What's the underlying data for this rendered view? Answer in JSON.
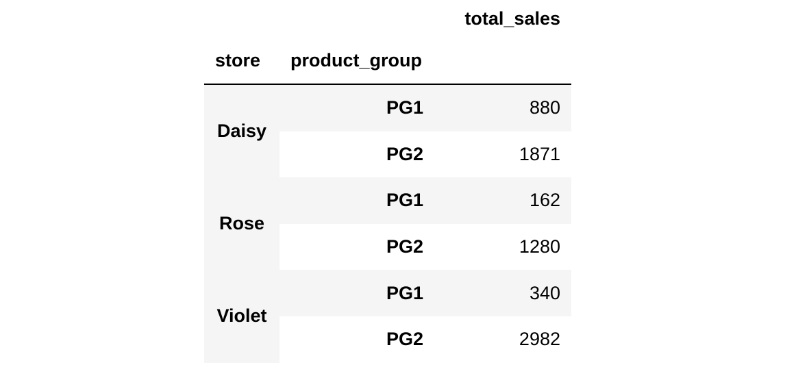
{
  "table": {
    "value_header": "total_sales",
    "index_headers": [
      "store",
      "product_group"
    ],
    "rows": [
      {
        "store": "Daisy",
        "product_group": "PG1",
        "total_sales": "880"
      },
      {
        "store": "",
        "product_group": "PG2",
        "total_sales": "1871"
      },
      {
        "store": "Rose",
        "product_group": "PG1",
        "total_sales": "162"
      },
      {
        "store": "",
        "product_group": "PG2",
        "total_sales": "1280"
      },
      {
        "store": "Violet",
        "product_group": "PG1",
        "total_sales": "340"
      },
      {
        "store": "",
        "product_group": "PG2",
        "total_sales": "2982"
      }
    ]
  }
}
